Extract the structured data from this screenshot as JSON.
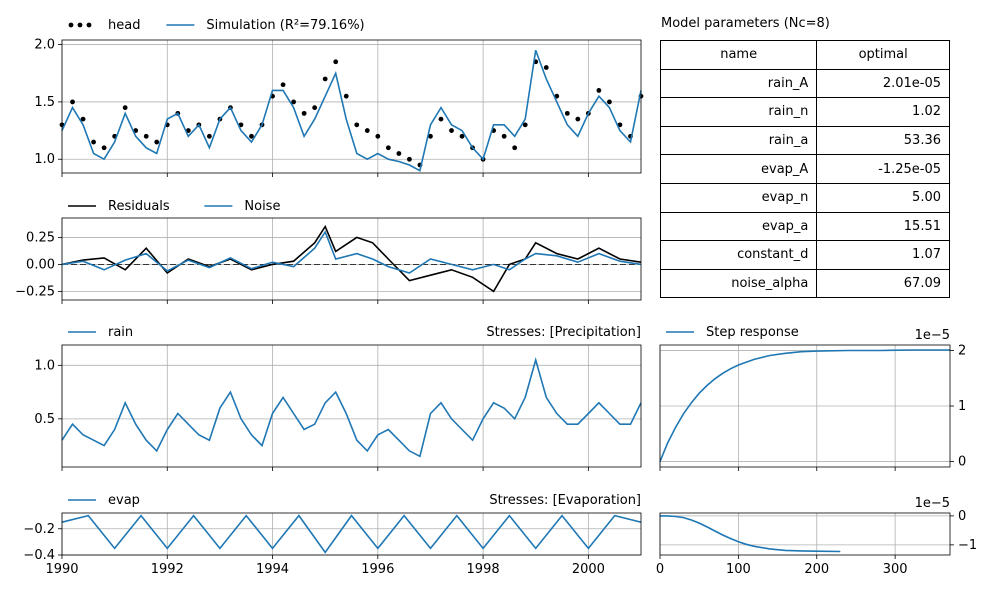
{
  "chart_data": [
    {
      "panel": "heads",
      "type": "line",
      "legend": [
        "head",
        "Simulation (R²=79.16%)"
      ],
      "legend_position": "top-left",
      "xlim": [
        1990,
        2001
      ],
      "ylim": [
        0.88,
        2.04
      ],
      "yticks": [
        "1.0",
        "1.5",
        "2.0"
      ],
      "grid": true,
      "series": [
        {
          "name": "head",
          "style": "dots",
          "color": "#000000",
          "x": [
            1990.0,
            1990.2,
            1990.4,
            1990.6,
            1990.8,
            1991.0,
            1991.2,
            1991.4,
            1991.6,
            1991.8,
            1992.0,
            1992.2,
            1992.4,
            1992.6,
            1992.8,
            1993.0,
            1993.2,
            1993.4,
            1993.6,
            1993.8,
            1994.0,
            1994.2,
            1994.4,
            1994.6,
            1994.8,
            1995.0,
            1995.2,
            1995.4,
            1995.6,
            1995.8,
            1996.0,
            1996.2,
            1996.4,
            1996.6,
            1996.8,
            1997.0,
            1997.2,
            1997.4,
            1997.6,
            1997.8,
            1998.0,
            1998.2,
            1998.4,
            1998.6,
            1998.8,
            1999.0,
            1999.2,
            1999.4,
            1999.6,
            1999.8,
            2000.0,
            2000.2,
            2000.4,
            2000.6,
            2000.8,
            2001.0
          ],
          "y": [
            1.3,
            1.5,
            1.35,
            1.15,
            1.1,
            1.2,
            1.45,
            1.25,
            1.2,
            1.15,
            1.3,
            1.4,
            1.25,
            1.3,
            1.2,
            1.35,
            1.45,
            1.3,
            1.2,
            1.3,
            1.55,
            1.65,
            1.5,
            1.4,
            1.45,
            1.7,
            1.85,
            1.55,
            1.3,
            1.25,
            1.2,
            1.1,
            1.05,
            1.0,
            0.95,
            1.2,
            1.35,
            1.25,
            1.2,
            1.1,
            1.0,
            1.25,
            1.2,
            1.1,
            1.3,
            1.85,
            1.8,
            1.55,
            1.4,
            1.35,
            1.4,
            1.6,
            1.5,
            1.3,
            1.2,
            1.55
          ]
        },
        {
          "name": "Simulation (R²=79.16%)",
          "style": "line",
          "color": "#1f77b4",
          "x": [
            1990.0,
            1990.2,
            1990.4,
            1990.6,
            1990.8,
            1991.0,
            1991.2,
            1991.4,
            1991.6,
            1991.8,
            1992.0,
            1992.2,
            1992.4,
            1992.6,
            1992.8,
            1993.0,
            1993.2,
            1993.4,
            1993.6,
            1993.8,
            1994.0,
            1994.2,
            1994.4,
            1994.6,
            1994.8,
            1995.0,
            1995.2,
            1995.4,
            1995.6,
            1995.8,
            1996.0,
            1996.2,
            1996.4,
            1996.6,
            1996.8,
            1997.0,
            1997.2,
            1997.4,
            1997.6,
            1997.8,
            1998.0,
            1998.2,
            1998.4,
            1998.6,
            1998.8,
            1999.0,
            1999.2,
            1999.4,
            1999.6,
            1999.8,
            2000.0,
            2000.2,
            2000.4,
            2000.6,
            2000.8,
            2001.0
          ],
          "y": [
            1.25,
            1.45,
            1.3,
            1.05,
            1.0,
            1.15,
            1.4,
            1.2,
            1.1,
            1.05,
            1.35,
            1.4,
            1.2,
            1.3,
            1.1,
            1.35,
            1.45,
            1.25,
            1.15,
            1.3,
            1.6,
            1.6,
            1.45,
            1.2,
            1.35,
            1.55,
            1.75,
            1.35,
            1.05,
            1.0,
            1.05,
            1.0,
            0.98,
            0.95,
            0.9,
            1.3,
            1.45,
            1.3,
            1.25,
            1.1,
            1.0,
            1.3,
            1.3,
            1.2,
            1.35,
            1.95,
            1.7,
            1.5,
            1.3,
            1.2,
            1.4,
            1.55,
            1.45,
            1.25,
            1.15,
            1.6
          ]
        }
      ]
    },
    {
      "panel": "residuals",
      "type": "line",
      "legend": [
        "Residuals",
        "Noise"
      ],
      "legend_position": "top-left",
      "xlim": [
        1990,
        2001
      ],
      "ylim": [
        -0.33,
        0.43
      ],
      "yticks": [
        "−0.25",
        "0.00",
        "0.25"
      ],
      "grid": true,
      "series": [
        {
          "name": "Residuals",
          "color": "#000000",
          "x": [
            1990.0,
            1990.4,
            1990.8,
            1991.2,
            1991.6,
            1992.0,
            1992.4,
            1992.8,
            1993.2,
            1993.6,
            1994.0,
            1994.4,
            1994.8,
            1995.0,
            1995.2,
            1995.6,
            1995.9,
            1996.2,
            1996.6,
            1997.0,
            1997.4,
            1997.8,
            1998.2,
            1998.5,
            1998.8,
            1999.0,
            1999.4,
            1999.8,
            2000.2,
            2000.6,
            2001.0
          ],
          "y": [
            0.0,
            0.04,
            0.06,
            -0.05,
            0.15,
            -0.08,
            0.05,
            -0.02,
            0.05,
            -0.05,
            0.0,
            0.03,
            0.2,
            0.35,
            0.12,
            0.25,
            0.2,
            0.05,
            -0.15,
            -0.1,
            -0.05,
            -0.12,
            -0.25,
            0.0,
            0.05,
            0.2,
            0.1,
            0.05,
            0.15,
            0.05,
            0.02
          ]
        },
        {
          "name": "Noise",
          "color": "#1f77b4",
          "x": [
            1990.0,
            1990.4,
            1990.8,
            1991.2,
            1991.6,
            1992.0,
            1992.4,
            1992.8,
            1993.2,
            1993.6,
            1994.0,
            1994.4,
            1994.8,
            1995.0,
            1995.2,
            1995.6,
            1995.9,
            1996.2,
            1996.6,
            1997.0,
            1997.4,
            1997.8,
            1998.2,
            1998.5,
            1998.8,
            1999.0,
            1999.4,
            1999.8,
            2000.2,
            2000.6,
            2001.0
          ],
          "y": [
            0.0,
            0.03,
            -0.05,
            0.04,
            0.1,
            -0.06,
            0.04,
            -0.03,
            0.06,
            -0.04,
            0.02,
            -0.02,
            0.15,
            0.3,
            0.05,
            0.1,
            0.05,
            -0.02,
            -0.08,
            0.05,
            0.0,
            -0.05,
            0.0,
            -0.05,
            0.05,
            0.1,
            0.08,
            0.02,
            0.1,
            0.03,
            0.0
          ]
        }
      ]
    },
    {
      "panel": "rain",
      "type": "line",
      "legend": [
        "rain"
      ],
      "panel_title": "Stresses: [Precipitation]",
      "xlim": [
        1990,
        2001
      ],
      "ylim": [
        0.05,
        1.19
      ],
      "yticks": [
        "0.5",
        "1.0"
      ],
      "grid": true,
      "series": [
        {
          "name": "rain",
          "color": "#1f77b4",
          "x": [
            1990.0,
            1990.2,
            1990.4,
            1990.6,
            1990.8,
            1991.0,
            1991.2,
            1991.4,
            1991.6,
            1991.8,
            1992.0,
            1992.2,
            1992.4,
            1992.6,
            1992.8,
            1993.0,
            1993.2,
            1993.4,
            1993.6,
            1993.8,
            1994.0,
            1994.2,
            1994.4,
            1994.6,
            1994.8,
            1995.0,
            1995.2,
            1995.4,
            1995.6,
            1995.8,
            1996.0,
            1996.2,
            1996.4,
            1996.6,
            1996.8,
            1997.0,
            1997.2,
            1997.4,
            1997.6,
            1997.8,
            1998.0,
            1998.2,
            1998.4,
            1998.6,
            1998.8,
            1999.0,
            1999.2,
            1999.4,
            1999.6,
            1999.8,
            2000.0,
            2000.2,
            2000.4,
            2000.6,
            2000.8,
            2001.0
          ],
          "y": [
            0.3,
            0.45,
            0.35,
            0.3,
            0.25,
            0.4,
            0.65,
            0.45,
            0.3,
            0.2,
            0.4,
            0.55,
            0.45,
            0.35,
            0.3,
            0.6,
            0.75,
            0.5,
            0.35,
            0.25,
            0.55,
            0.7,
            0.55,
            0.4,
            0.45,
            0.65,
            0.75,
            0.55,
            0.3,
            0.2,
            0.35,
            0.4,
            0.3,
            0.2,
            0.15,
            0.55,
            0.65,
            0.5,
            0.4,
            0.3,
            0.5,
            0.65,
            0.6,
            0.5,
            0.7,
            1.05,
            0.7,
            0.55,
            0.45,
            0.45,
            0.55,
            0.65,
            0.55,
            0.45,
            0.45,
            0.65
          ]
        }
      ]
    },
    {
      "panel": "evap",
      "type": "line",
      "legend": [
        "evap"
      ],
      "panel_title": "Stresses: [Evaporation]",
      "xlim": [
        1990,
        2001
      ],
      "ylim": [
        -0.4,
        -0.08
      ],
      "yticks": [
        "−0.4",
        "−0.2"
      ],
      "xticks": [
        "1990",
        "1992",
        "1994",
        "1996",
        "1998",
        "2000"
      ],
      "grid": true,
      "series": [
        {
          "name": "evap",
          "color": "#1f77b4",
          "x": [
            1990.0,
            1990.5,
            1991.0,
            1991.5,
            1992.0,
            1992.5,
            1993.0,
            1993.5,
            1994.0,
            1994.5,
            1995.0,
            1995.5,
            1996.0,
            1996.5,
            1997.0,
            1997.5,
            1998.0,
            1998.5,
            1999.0,
            1999.5,
            2000.0,
            2000.5,
            2001.0
          ],
          "y": [
            -0.15,
            -0.1,
            -0.35,
            -0.1,
            -0.35,
            -0.1,
            -0.35,
            -0.1,
            -0.35,
            -0.1,
            -0.38,
            -0.1,
            -0.35,
            -0.1,
            -0.35,
            -0.1,
            -0.35,
            -0.1,
            -0.35,
            -0.1,
            -0.35,
            -0.1,
            -0.15
          ]
        }
      ]
    },
    {
      "panel": "rain_step",
      "type": "line",
      "legend": [
        "Step response"
      ],
      "offset_label": "1e−5",
      "xlim": [
        0,
        370
      ],
      "ylim": [
        -0.1,
        2.1
      ],
      "yticks": [
        "0",
        "1",
        "2"
      ],
      "grid": true,
      "series": [
        {
          "name": "Step response",
          "color": "#1f77b4",
          "x": [
            0,
            10,
            20,
            30,
            40,
            50,
            60,
            70,
            80,
            90,
            100,
            120,
            140,
            160,
            180,
            200,
            240,
            280,
            320,
            370
          ],
          "y": [
            0.0,
            0.34,
            0.62,
            0.86,
            1.06,
            1.23,
            1.37,
            1.49,
            1.59,
            1.67,
            1.74,
            1.84,
            1.91,
            1.95,
            1.98,
            1.99,
            2.0,
            2.0,
            2.01,
            2.01
          ]
        }
      ]
    },
    {
      "panel": "evap_step",
      "type": "line",
      "offset_label": "1e−5",
      "xlim": [
        0,
        370
      ],
      "ylim": [
        -1.35,
        0.1
      ],
      "yticks": [
        "−1",
        "0"
      ],
      "xticks": [
        "0",
        "100",
        "200",
        "300"
      ],
      "grid": true,
      "series": [
        {
          "name": "",
          "color": "#1f77b4",
          "x": [
            0,
            10,
            20,
            30,
            40,
            50,
            60,
            70,
            80,
            90,
            100,
            110,
            120,
            140,
            160,
            180,
            200,
            230
          ],
          "y": [
            0.0,
            0.0,
            -0.02,
            -0.06,
            -0.14,
            -0.25,
            -0.38,
            -0.52,
            -0.66,
            -0.78,
            -0.89,
            -0.98,
            -1.05,
            -1.14,
            -1.19,
            -1.21,
            -1.22,
            -1.23
          ]
        }
      ]
    }
  ],
  "parameters": {
    "title": "Model parameters (Nc=8)",
    "columns": [
      "name",
      "optimal"
    ],
    "rows": [
      [
        "rain_A",
        "2.01e-05"
      ],
      [
        "rain_n",
        "1.02"
      ],
      [
        "rain_a",
        "53.36"
      ],
      [
        "evap_A",
        "-1.25e-05"
      ],
      [
        "evap_n",
        "5.00"
      ],
      [
        "evap_a",
        "15.51"
      ],
      [
        "constant_d",
        "1.07"
      ],
      [
        "noise_alpha",
        "67.09"
      ]
    ]
  }
}
